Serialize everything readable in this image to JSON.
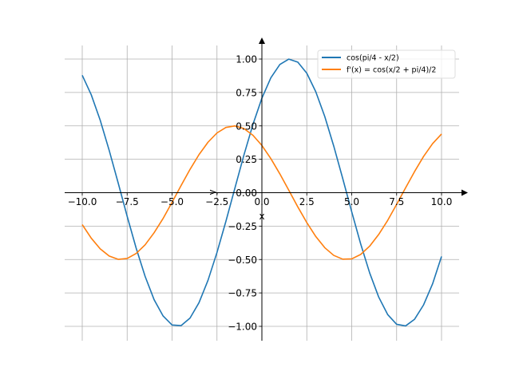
{
  "chart_data": {
    "type": "line",
    "title": "",
    "xlabel": "x",
    "ylabel": "y",
    "xlim": [
      -11,
      11
    ],
    "ylim": [
      -1.1,
      1.1
    ],
    "grid": true,
    "legend_position": "top-right",
    "x_ticks": [
      -10,
      -7.5,
      -5,
      -2.5,
      0,
      2.5,
      5,
      7.5,
      10
    ],
    "x_tick_labels": [
      "−10.0",
      "−7.5",
      "−5.0",
      "−2.5",
      "0.0",
      "2.5",
      "5.0",
      "7.5",
      "10.0"
    ],
    "y_ticks": [
      -1,
      -0.75,
      -0.5,
      -0.25,
      0,
      0.25,
      0.5,
      0.75,
      1
    ],
    "y_tick_labels": [
      "−1.00",
      "−0.75",
      "−0.50",
      "−0.25",
      "0.00",
      "0.25",
      "0.50",
      "0.75",
      "1.00"
    ],
    "x": [
      -10,
      -9.5,
      -9,
      -8.5,
      -8,
      -7.5,
      -7,
      -6.5,
      -6,
      -5.5,
      -5,
      -4.5,
      -4,
      -3.5,
      -3,
      -2.5,
      -2,
      -1.5,
      -1,
      -0.5,
      0,
      0.5,
      1,
      1.5,
      2,
      2.5,
      3,
      3.5,
      4,
      4.5,
      5,
      5.5,
      6,
      6.5,
      7,
      7.5,
      8,
      8.5,
      9,
      9.5,
      10
    ],
    "series": [
      {
        "name": "cos(pi/4 - x/2)",
        "color": "#1f77b4",
        "values": [
          0.8787,
          0.7332,
          0.5424,
          0.3169,
          0.073,
          -0.1761,
          -0.4141,
          -0.6262,
          -0.8004,
          -0.9223,
          -0.99,
          -0.9946,
          -0.938,
          -0.8229,
          -0.6556,
          -0.4474,
          -0.2127,
          0.0354,
          0.2817,
          0.51,
          0.7071,
          0.8601,
          0.9595,
          0.9994,
          0.9771,
          0.894,
          0.7553,
          0.57,
          0.3487,
          0.106,
          -0.1431,
          -0.3835,
          -0.6004,
          -0.7802,
          -0.9114,
          -0.9848,
          -0.9966,
          -0.9468,
          -0.8395,
          -0.6826,
          -0.4769
        ]
      },
      {
        "name": "f'(x) = cos(x/2 + pi/4)/2",
        "color": "#ff7f0e",
        "values": [
          -0.2388,
          -0.34,
          -0.4201,
          -0.4742,
          -0.4987,
          -0.4922,
          -0.4551,
          -0.3899,
          -0.2997,
          -0.1932,
          -0.0716,
          0.053,
          0.1744,
          0.285,
          0.3776,
          0.447,
          0.4886,
          0.4997,
          0.4797,
          0.43,
          0.3536,
          0.255,
          0.1408,
          0.0177,
          -0.1064,
          -0.2237,
          -0.3278,
          -0.4115,
          -0.469,
          -0.4973,
          -0.495,
          -0.4618,
          -0.3998,
          -0.3128,
          -0.2076,
          -0.0874,
          0.0365,
          0.1585,
          0.2712,
          0.3666,
          0.4394
        ]
      }
    ]
  }
}
